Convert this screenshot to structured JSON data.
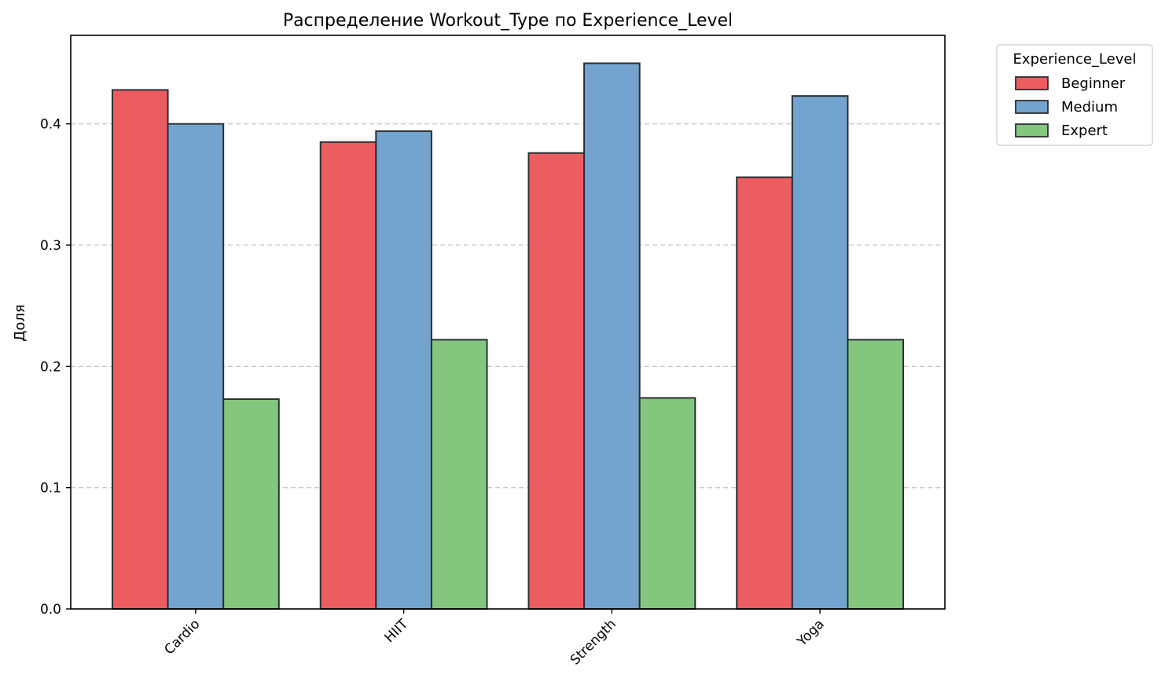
{
  "chart_data": {
    "type": "bar",
    "title": "Распределение Workout_Type по Experience_Level",
    "xlabel": "",
    "ylabel": "Доля",
    "categories": [
      "Cardio",
      "HIIT",
      "Strength",
      "Yoga"
    ],
    "series": [
      {
        "name": "Beginner",
        "color": "#ec5d61",
        "values": [
          0.428,
          0.385,
          0.376,
          0.356
        ]
      },
      {
        "name": "Medium",
        "color": "#73a4cf",
        "values": [
          0.4,
          0.394,
          0.45,
          0.423
        ]
      },
      {
        "name": "Expert",
        "color": "#84c67d",
        "values": [
          0.173,
          0.222,
          0.174,
          0.222
        ]
      }
    ],
    "ylim": [
      0,
      0.473
    ],
    "yticks": [
      0.0,
      0.1,
      0.2,
      0.3,
      0.4
    ],
    "ytick_labels": [
      "0.0",
      "0.1",
      "0.2",
      "0.3",
      "0.4"
    ],
    "grid": "y-dashed",
    "legend": {
      "title": "Experience_Level",
      "placement": "outside-top-right"
    },
    "edge_color": "#2b2f33"
  }
}
